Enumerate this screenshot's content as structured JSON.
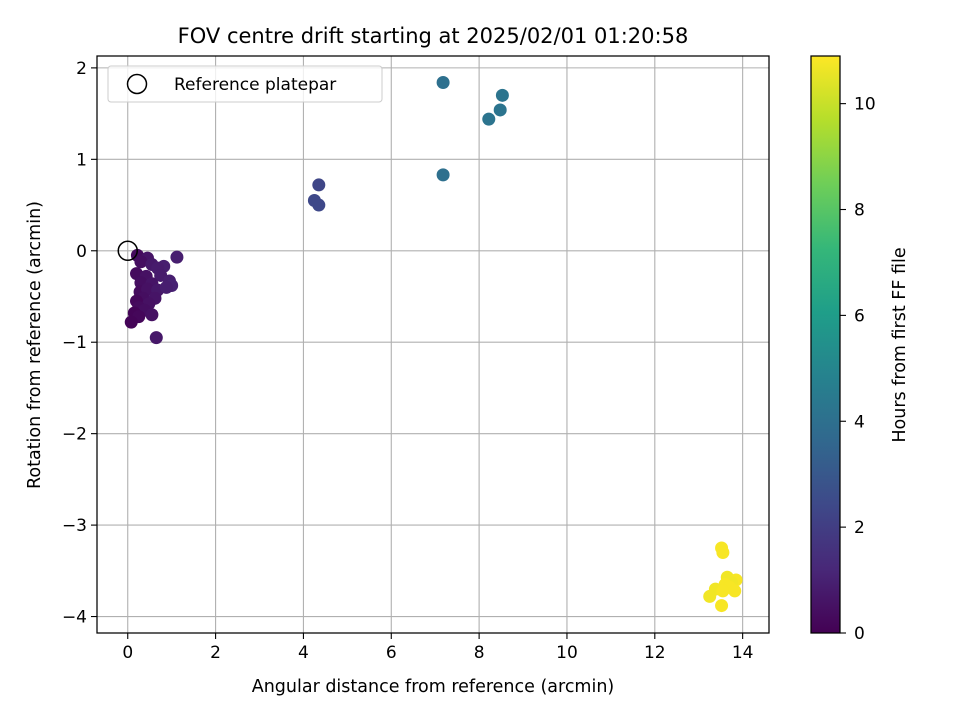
{
  "chart_data": {
    "type": "scatter",
    "title": "FOV centre drift starting at 2025/02/01 01:20:58",
    "xlabel": "Angular distance from reference (arcmin)",
    "ylabel": "Rotation from reference (arcmin)",
    "xlim": [
      -0.7,
      14.6
    ],
    "ylim": [
      -4.18,
      2.13
    ],
    "xticks": [
      0,
      2,
      4,
      6,
      8,
      10,
      12,
      14
    ],
    "xtick_labels": [
      "0",
      "2",
      "4",
      "6",
      "8",
      "10",
      "12",
      "14"
    ],
    "yticks": [
      -4,
      -3,
      -2,
      -1,
      0,
      1,
      2
    ],
    "ytick_labels": [
      "−4",
      "−3",
      "−2",
      "−1",
      "0",
      "1",
      "2"
    ],
    "grid": true,
    "legend": {
      "placement": "upper-left",
      "entries": [
        {
          "label": "Reference platepar",
          "marker": "open-circle",
          "color": "#000000"
        }
      ]
    },
    "reference_point": {
      "x": 0,
      "y": 0
    },
    "colorbar": {
      "label": "Hours from first FF file",
      "colormap": "viridis",
      "range": [
        0,
        10.9
      ],
      "ticks": [
        0,
        2,
        4,
        6,
        8,
        10
      ],
      "tick_labels": [
        "0",
        "2",
        "4",
        "6",
        "8",
        "10"
      ],
      "stops": [
        "#440154",
        "#482878",
        "#3e4989",
        "#31688e",
        "#26828e",
        "#1f9e89",
        "#35b779",
        "#6ece58",
        "#b5de2b",
        "#fde725"
      ]
    },
    "points": [
      {
        "x": 0.22,
        "y": -0.05,
        "t": 0.3
      },
      {
        "x": 0.45,
        "y": -0.08,
        "t": 0.6
      },
      {
        "x": 1.12,
        "y": -0.07,
        "t": 0.9
      },
      {
        "x": 0.3,
        "y": -0.12,
        "t": 0.4
      },
      {
        "x": 0.55,
        "y": -0.15,
        "t": 0.7
      },
      {
        "x": 0.82,
        "y": -0.17,
        "t": 0.9
      },
      {
        "x": 0.68,
        "y": -0.19,
        "t": 0.8
      },
      {
        "x": 0.2,
        "y": -0.25,
        "t": 0.3
      },
      {
        "x": 0.42,
        "y": -0.28,
        "t": 0.5
      },
      {
        "x": 0.75,
        "y": -0.27,
        "t": 0.8
      },
      {
        "x": 0.3,
        "y": -0.35,
        "t": 0.4
      },
      {
        "x": 0.55,
        "y": -0.36,
        "t": 0.6
      },
      {
        "x": 0.95,
        "y": -0.33,
        "t": 0.9
      },
      {
        "x": 1.0,
        "y": -0.38,
        "t": 1.0
      },
      {
        "x": 0.28,
        "y": -0.45,
        "t": 0.3
      },
      {
        "x": 0.45,
        "y": -0.42,
        "t": 0.5
      },
      {
        "x": 0.68,
        "y": -0.43,
        "t": 0.7
      },
      {
        "x": 0.88,
        "y": -0.4,
        "t": 0.9
      },
      {
        "x": 0.35,
        "y": -0.52,
        "t": 0.4
      },
      {
        "x": 0.62,
        "y": -0.52,
        "t": 0.6
      },
      {
        "x": 0.2,
        "y": -0.55,
        "t": 0.2
      },
      {
        "x": 0.48,
        "y": -0.58,
        "t": 0.5
      },
      {
        "x": 0.25,
        "y": -0.62,
        "t": 0.3
      },
      {
        "x": 0.38,
        "y": -0.65,
        "t": 0.4
      },
      {
        "x": 0.15,
        "y": -0.68,
        "t": 0.1
      },
      {
        "x": 0.55,
        "y": -0.7,
        "t": 0.5
      },
      {
        "x": 0.25,
        "y": -0.72,
        "t": 0.2
      },
      {
        "x": 0.08,
        "y": -0.78,
        "t": 0.1
      },
      {
        "x": 0.65,
        "y": -0.95,
        "t": 0.7
      },
      {
        "x": 4.25,
        "y": 0.55,
        "t": 2.4
      },
      {
        "x": 4.35,
        "y": 0.5,
        "t": 2.4
      },
      {
        "x": 4.35,
        "y": 0.72,
        "t": 2.3
      },
      {
        "x": 7.18,
        "y": 1.84,
        "t": 4.0
      },
      {
        "x": 7.18,
        "y": 0.83,
        "t": 4.0
      },
      {
        "x": 8.22,
        "y": 1.44,
        "t": 4.2
      },
      {
        "x": 8.48,
        "y": 1.54,
        "t": 4.2
      },
      {
        "x": 8.53,
        "y": 1.7,
        "t": 4.2
      },
      {
        "x": 13.52,
        "y": -3.25,
        "t": 10.8
      },
      {
        "x": 13.55,
        "y": -3.3,
        "t": 10.8
      },
      {
        "x": 13.65,
        "y": -3.57,
        "t": 10.7
      },
      {
        "x": 13.85,
        "y": -3.6,
        "t": 10.8
      },
      {
        "x": 13.75,
        "y": -3.63,
        "t": 10.7
      },
      {
        "x": 13.6,
        "y": -3.65,
        "t": 10.8
      },
      {
        "x": 13.7,
        "y": -3.68,
        "t": 10.8
      },
      {
        "x": 13.38,
        "y": -3.7,
        "t": 10.7
      },
      {
        "x": 13.55,
        "y": -3.72,
        "t": 10.8
      },
      {
        "x": 13.82,
        "y": -3.72,
        "t": 10.8
      },
      {
        "x": 13.25,
        "y": -3.78,
        "t": 10.7
      },
      {
        "x": 13.52,
        "y": -3.88,
        "t": 10.8
      }
    ]
  }
}
